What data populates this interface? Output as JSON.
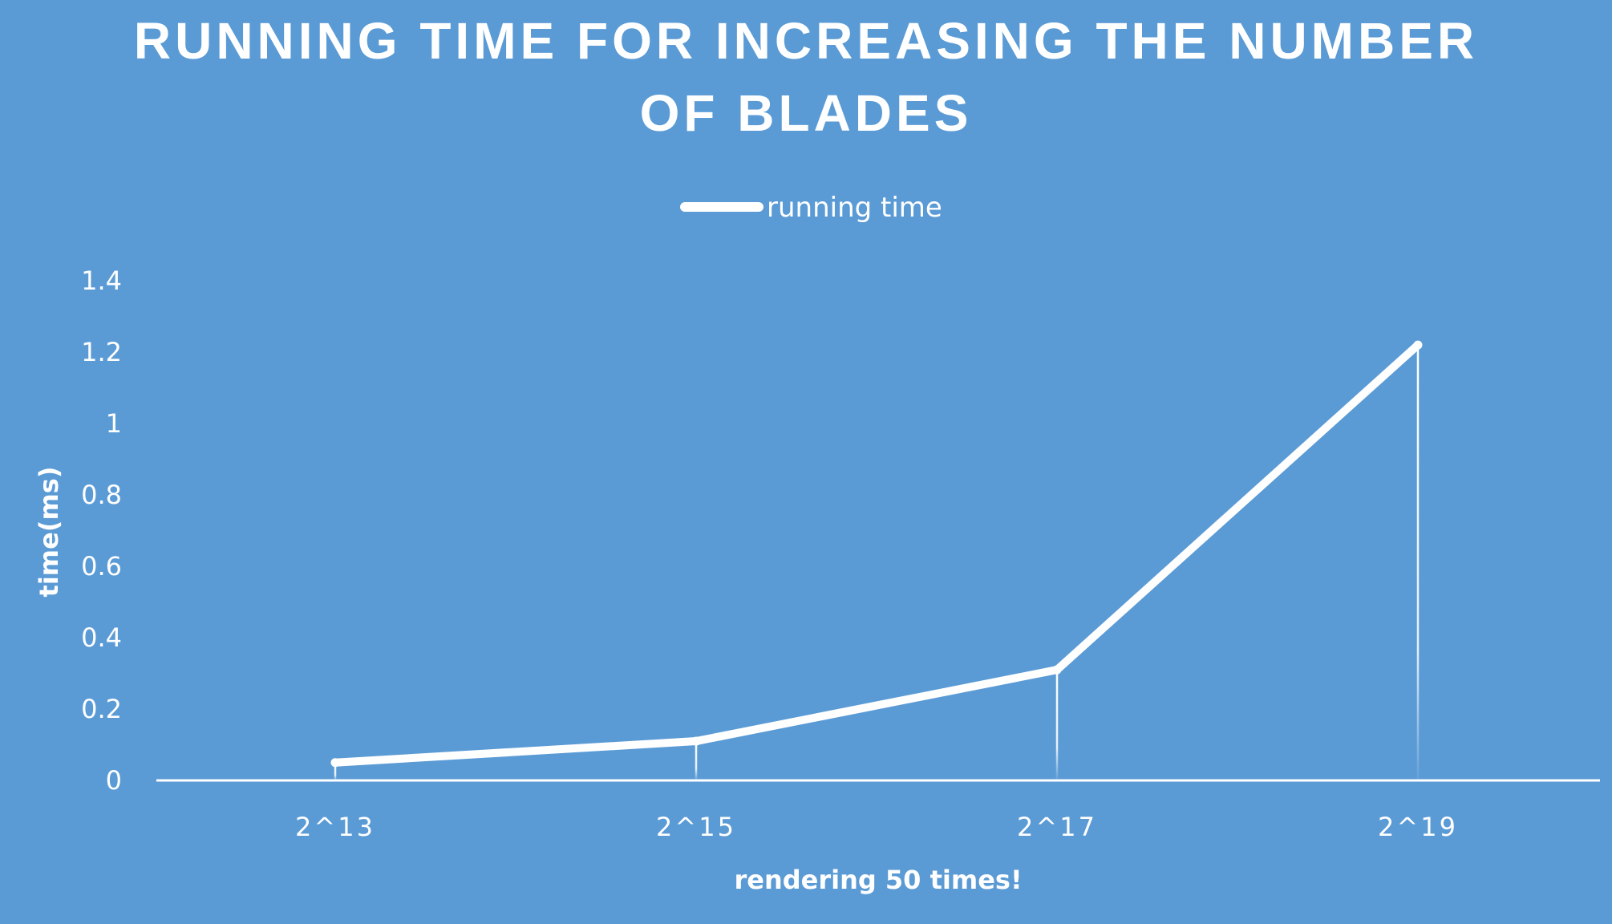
{
  "chart_data": {
    "type": "line",
    "title_lines": [
      "RUNNING TIME FOR INCREASING THE NUMBER",
      "OF BLADES"
    ],
    "xlabel": "rendering 50 times!",
    "ylabel": "time(ms)",
    "categories": [
      "2^13",
      "2^15",
      "2^17",
      "2^19"
    ],
    "series": [
      {
        "name": "running time",
        "values": [
          0.05,
          0.11,
          0.31,
          1.22
        ]
      }
    ],
    "ylim": [
      0,
      1.4
    ],
    "yticks": [
      "0",
      "0.2",
      "0.4",
      "0.6",
      "0.8",
      "1",
      "1.2",
      "1.4"
    ],
    "grid": false,
    "drop_lines": true,
    "legend_position": "top-center",
    "colors": {
      "background": "#5b9bd5",
      "line": "#ffffff",
      "text": "#ffffff"
    }
  }
}
